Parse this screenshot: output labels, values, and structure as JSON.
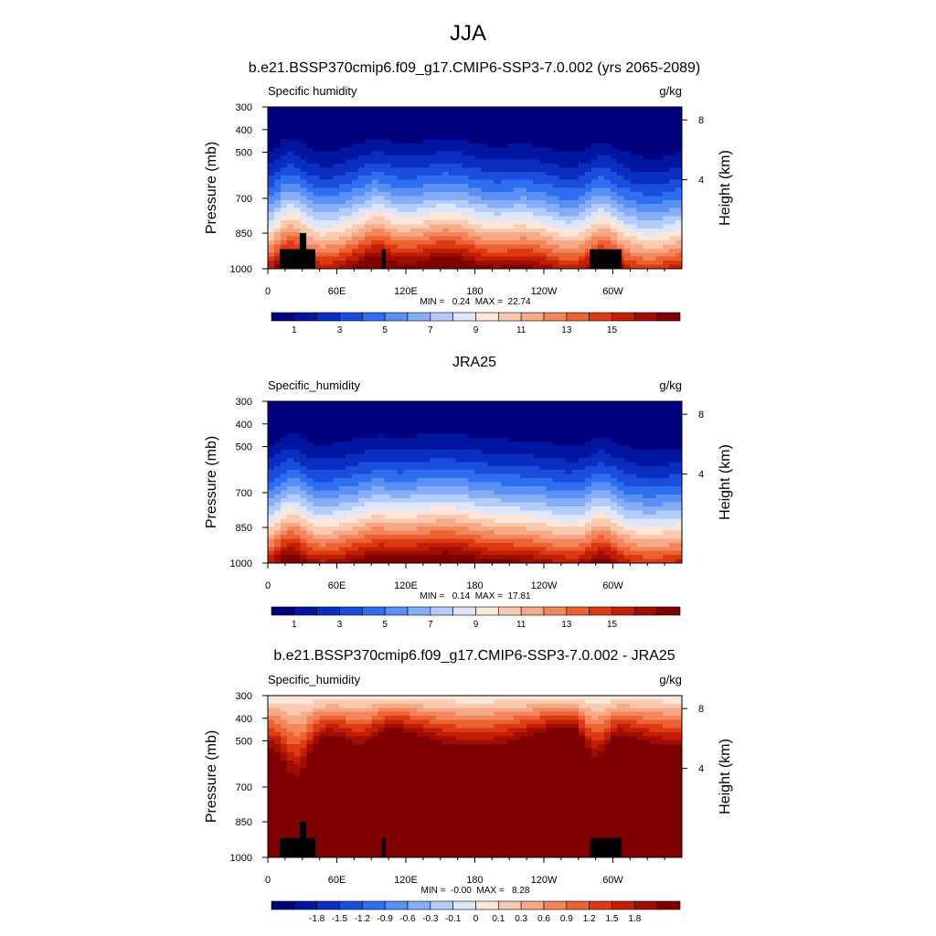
{
  "figure": {
    "title": "JJA"
  },
  "colors": {
    "humidity_palette": [
      "#00007f",
      "#0016a0",
      "#0a2fc0",
      "#1a4ddc",
      "#2f6ef0",
      "#5a90f5",
      "#86aef7",
      "#b3ccfa",
      "#dde6fa",
      "#fbe6d9",
      "#f9c9b0",
      "#f6a987",
      "#f3865d",
      "#ec6233",
      "#dc3a12",
      "#c21e06",
      "#a00d02",
      "#7f0000"
    ],
    "diff_palette": [
      "#00007f",
      "#0016a0",
      "#0a2fc0",
      "#1a4ddc",
      "#2f6ef0",
      "#5a90f5",
      "#86aef7",
      "#b3ccfa",
      "#dde6fa",
      "#fbe6d9",
      "#f9c9b0",
      "#f6a987",
      "#f3865d",
      "#ec6233",
      "#dc3a12",
      "#c21e06",
      "#a00d02",
      "#7f0000"
    ],
    "missing": "#000000"
  },
  "chart_data": [
    {
      "type": "heatmap",
      "title": "b.e21.BSSP370cmip6.f09_g17.CMIP6-SSP3-7.0.002 (yrs 2065-2089)",
      "variable": "Specific humidity",
      "units": "g/kg",
      "ylabel": "Pressure (mb)",
      "ylabel_right": "Height (km)",
      "x_ticks": [
        "0",
        "60E",
        "120E",
        "180",
        "120W",
        "60W"
      ],
      "y_ticks": [
        "300",
        "400",
        "500",
        "700",
        "850",
        "1000"
      ],
      "right_ticks": [
        "8",
        "4"
      ],
      "stats": "MIN =   0.24  MAX =  22.74",
      "colorbar_labels": [
        "1",
        "3",
        "5",
        "7",
        "9",
        "11",
        "13",
        "15"
      ],
      "xlim": [
        0,
        360
      ],
      "ylim": [
        1000,
        300
      ],
      "min": 0.24,
      "max": 22.74
    },
    {
      "type": "heatmap",
      "title": "JRA25",
      "variable": "Specific_humidity",
      "units": "g/kg",
      "ylabel": "Pressure (mb)",
      "ylabel_right": "Height (km)",
      "x_ticks": [
        "0",
        "60E",
        "120E",
        "180",
        "120W",
        "60W"
      ],
      "y_ticks": [
        "300",
        "400",
        "500",
        "700",
        "850",
        "1000"
      ],
      "right_ticks": [
        "8",
        "4"
      ],
      "stats": "MIN =   0.14  MAX =  17.81",
      "colorbar_labels": [
        "1",
        "3",
        "5",
        "7",
        "9",
        "11",
        "13",
        "15"
      ],
      "xlim": [
        0,
        360
      ],
      "ylim": [
        1000,
        300
      ],
      "min": 0.14,
      "max": 17.81
    },
    {
      "type": "heatmap",
      "title": "b.e21.BSSP370cmip6.f09_g17.CMIP6-SSP3-7.0.002 - JRA25",
      "variable": "Specific_humidity",
      "units": "g/kg",
      "ylabel": "Pressure (mb)",
      "ylabel_right": "Height (km)",
      "x_ticks": [
        "0",
        "60E",
        "120E",
        "180",
        "120W",
        "60W"
      ],
      "y_ticks": [
        "300",
        "400",
        "500",
        "700",
        "850",
        "1000"
      ],
      "right_ticks": [
        "8",
        "4"
      ],
      "stats": "MIN =  -0.00  MAX =   8.28",
      "colorbar_labels": [
        "-1.8",
        "-1.5",
        "-1.2",
        "-0.9",
        "-0.6",
        "-0.3",
        "-0.1",
        "0",
        "0.1",
        "0.3",
        "0.6",
        "0.9",
        "1.2",
        "1.5",
        "1.8"
      ],
      "xlim": [
        0,
        360
      ],
      "ylim": [
        1000,
        300
      ],
      "min": -0.0,
      "max": 8.28
    }
  ]
}
